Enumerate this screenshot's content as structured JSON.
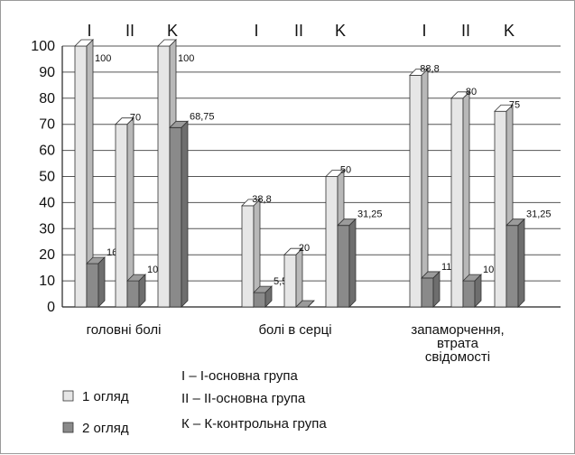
{
  "chart_data": {
    "type": "bar",
    "title": "",
    "xlabel": "",
    "ylabel": "",
    "ylim": [
      0,
      100
    ],
    "yticks": [
      0,
      10,
      20,
      30,
      40,
      50,
      60,
      70,
      80,
      90,
      100
    ],
    "grid": true,
    "legend_position": "bottom-left",
    "group_labels": [
      "I",
      "II",
      "K"
    ],
    "categories": [
      {
        "label": "головні болі",
        "groups": [
          {
            "group": "I",
            "v1": 100,
            "v2": 16.6,
            "l1": "100",
            "l2": "16,6"
          },
          {
            "group": "II",
            "v1": 70,
            "v2": 10,
            "l1": "70",
            "l2": "10"
          },
          {
            "group": "K",
            "v1": 100,
            "v2": 68.75,
            "l1": "100",
            "l2": "68,75"
          }
        ]
      },
      {
        "label": "болі в серці",
        "groups": [
          {
            "group": "I",
            "v1": 38.8,
            "v2": 5.5,
            "l1": "38,8",
            "l2": "5,5"
          },
          {
            "group": "II",
            "v1": 20,
            "v2": 0,
            "l1": "20",
            "l2": ""
          },
          {
            "group": "K",
            "v1": 50,
            "v2": 31.25,
            "l1": "50",
            "l2": "31,25"
          }
        ]
      },
      {
        "label": "запаморчення, втрата свідомості",
        "label_lines": [
          "запаморчення,",
          "втрата",
          "свідомості"
        ],
        "groups": [
          {
            "group": "I",
            "v1": 88.8,
            "v2": 11.1,
            "l1": "88,8",
            "l2": "11,1"
          },
          {
            "group": "II",
            "v1": 80,
            "v2": 10,
            "l1": "80",
            "l2": "10"
          },
          {
            "group": "K",
            "v1": 75,
            "v2": 31.25,
            "l1": "75",
            "l2": "31,25"
          }
        ]
      }
    ],
    "series": [
      {
        "name": "1 огляд",
        "color": "#e6e6e6"
      },
      {
        "name": "2 огляд",
        "color": "#8a8a8a"
      }
    ],
    "group_notes": [
      "I – I-основна група",
      "II – II-основна група",
      "К – К-контрольна група"
    ]
  }
}
